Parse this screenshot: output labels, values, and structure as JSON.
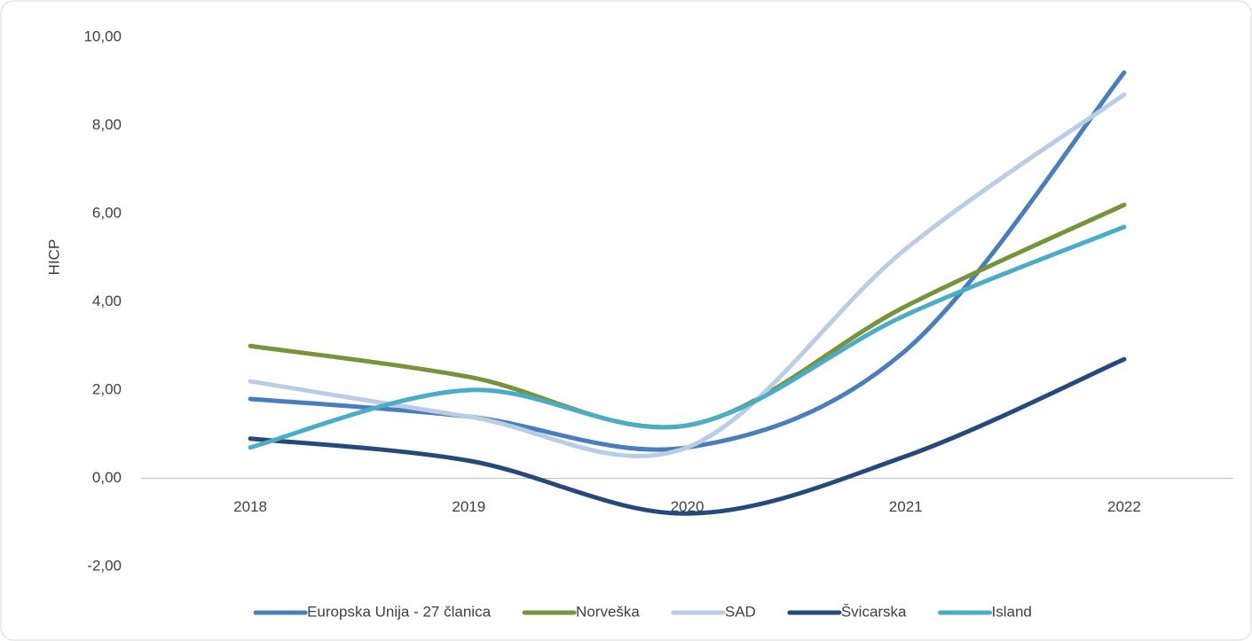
{
  "chart_data": {
    "type": "line",
    "y_label": "HICP",
    "categories": [
      "2018",
      "2019",
      "2020",
      "2021",
      "2022"
    ],
    "series": [
      {
        "name": "Europska Unija - 27 članica",
        "color": "#4a7ebb",
        "values": [
          1.8,
          1.4,
          0.7,
          2.9,
          9.2
        ]
      },
      {
        "name": "Norveška",
        "color": "#77933c",
        "values": [
          3.0,
          2.3,
          1.2,
          3.9,
          6.2
        ]
      },
      {
        "name": "SAD",
        "color": "#b9cde5",
        "values": [
          2.2,
          1.4,
          0.7,
          5.2,
          8.7
        ]
      },
      {
        "name": "Švicarska",
        "color": "#254a7a",
        "values": [
          0.9,
          0.4,
          -0.8,
          0.5,
          2.7
        ]
      },
      {
        "name": "Island",
        "color": "#4bacc6",
        "values": [
          0.7,
          2.0,
          1.2,
          3.7,
          5.7
        ]
      }
    ],
    "ylim": [
      -2,
      10
    ],
    "yticks": [
      {
        "value": -2,
        "label": "-2,00"
      },
      {
        "value": 0,
        "label": "0,00"
      },
      {
        "value": 2,
        "label": "2,00"
      },
      {
        "value": 4,
        "label": "4,00"
      },
      {
        "value": 6,
        "label": "6,00"
      },
      {
        "value": 8,
        "label": "8,00"
      },
      {
        "value": 10,
        "label": "10,00"
      }
    ],
    "smooth": true,
    "legend": "bottom"
  }
}
